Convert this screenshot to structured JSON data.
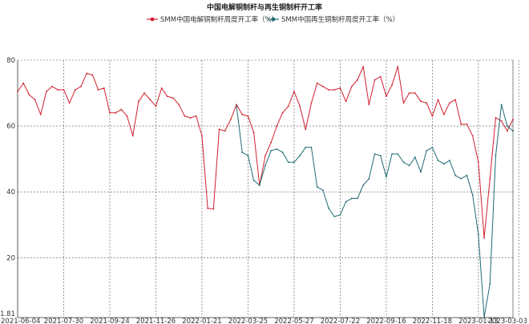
{
  "chart_data": {
    "type": "line",
    "title": "中国电解铜制杆与再生铜制杆开工率",
    "xlabel": "",
    "ylabel": "",
    "ylim": [
      1.81,
      80
    ],
    "ytick_values": [
      1.81,
      20,
      40,
      60,
      80
    ],
    "ytick_labels": [
      "1.81",
      "20",
      "40",
      "60",
      "80"
    ],
    "xtick_labels": [
      "2021-06-04",
      "2021-07-30",
      "2021-09-24",
      "2021-11-26",
      "2022-01-21",
      "2022-03-25",
      "2022-05-27",
      "2022-07-22",
      "2022-09-16",
      "2022-11-18",
      "2023-01-13",
      "2023-03-03"
    ],
    "xtick_indices": [
      0,
      8,
      16,
      24,
      32,
      40,
      48,
      56,
      64,
      72,
      80,
      87
    ],
    "grid": true,
    "legend_position": "top",
    "series": [
      {
        "name": "SMM中国电解铜制杆周度开工率（%）",
        "color": "#d0202e",
        "values": [
          70.5,
          73,
          69.5,
          68,
          63.5,
          70.5,
          72,
          71,
          71,
          67,
          71,
          72,
          76,
          75.5,
          71,
          71.5,
          64,
          64,
          65,
          63,
          57,
          67.5,
          70,
          68,
          66,
          71.5,
          69,
          68.5,
          66.5,
          63,
          62.5,
          63,
          57,
          35,
          34.8,
          59,
          58.5,
          62,
          66.5,
          63.5,
          63,
          58,
          42,
          51,
          55,
          60,
          64,
          66,
          70.5,
          66,
          59,
          67,
          73,
          72,
          71,
          71,
          71.5,
          67.5,
          72,
          74,
          78,
          66.5,
          74,
          75,
          69,
          72.5,
          78,
          67,
          70,
          70,
          67.5,
          67,
          63,
          68,
          63.5,
          67,
          68,
          60.5,
          60.5,
          57,
          49,
          26,
          44,
          62.5,
          61.5,
          58.5,
          62
        ]
      },
      {
        "name": "SMM中国再生铜制杆周度开工率（%）",
        "color": "#1f6b74",
        "values": [
          null,
          null,
          null,
          null,
          null,
          null,
          null,
          null,
          null,
          null,
          null,
          null,
          null,
          null,
          null,
          null,
          null,
          null,
          null,
          null,
          null,
          null,
          null,
          null,
          null,
          null,
          null,
          null,
          null,
          null,
          null,
          null,
          null,
          null,
          null,
          null,
          null,
          null,
          66,
          52,
          51,
          43.5,
          42,
          48,
          52.5,
          53,
          52,
          49,
          49,
          51,
          53.5,
          53.5,
          41.5,
          40.5,
          35,
          32.5,
          33,
          37,
          38,
          38,
          42,
          44,
          51.5,
          51,
          44.5,
          51.5,
          51.5,
          49,
          48,
          50.5,
          46,
          52.5,
          53.5,
          49.5,
          48.5,
          49.5,
          45,
          44,
          45,
          39,
          27,
          2,
          12,
          51,
          66.5,
          60,
          58.5
        ]
      }
    ]
  }
}
